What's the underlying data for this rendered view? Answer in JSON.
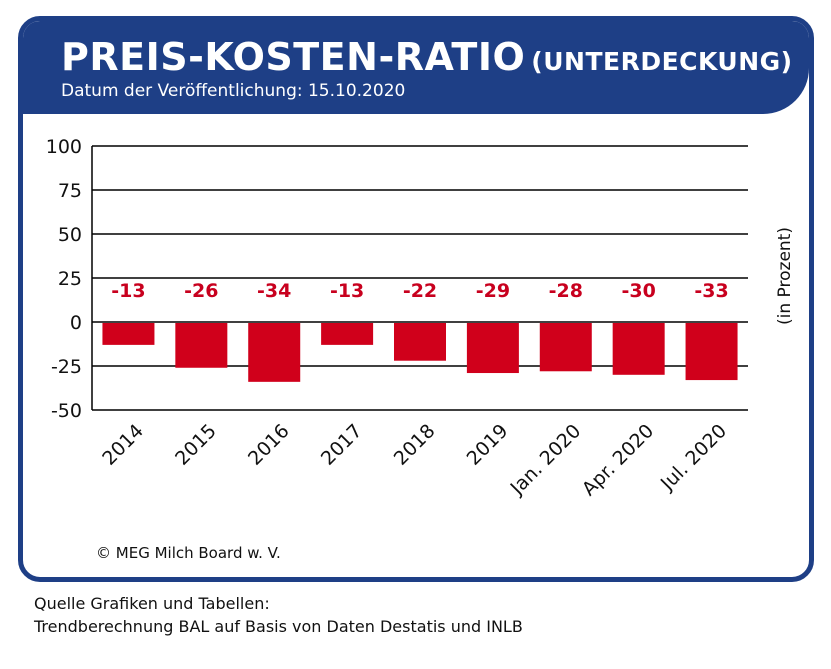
{
  "header": {
    "title_main": "PREIS-KOSTEN-RATIO",
    "title_sub": "(UNTERDECKUNG)",
    "date": "Datum der Veröffentlichung: 15.10.2020",
    "bg_color": "#1e3f86"
  },
  "copyright": "© MEG Milch Board w. V.",
  "source": {
    "line1": "Quelle Grafiken und Tabellen:",
    "line2": "Trendberechnung BAL auf Basis von Daten Destatis und INLB"
  },
  "chart_data": {
    "type": "bar",
    "categories": [
      "2014",
      "2015",
      "2016",
      "2017",
      "2018",
      "2019",
      "Jan. 2020",
      "Apr. 2020",
      "Jul. 2020"
    ],
    "values": [
      -13,
      -26,
      -34,
      -13,
      -22,
      -29,
      -28,
      -30,
      -33
    ],
    "data_labels": [
      "-13",
      "-26",
      "-34",
      "-13",
      "-22",
      "-29",
      "-28",
      "-30",
      "-33"
    ],
    "ylabel": "(in Prozent)",
    "ylim": [
      -50,
      100
    ],
    "yticks": [
      100,
      75,
      50,
      25,
      0,
      -25,
      -50
    ],
    "ytick_labels": [
      "100",
      "75",
      "50",
      "25",
      "0",
      "-25",
      "-50"
    ],
    "grid": true,
    "bar_color": "#d0001b",
    "label_color": "#c8001e"
  }
}
